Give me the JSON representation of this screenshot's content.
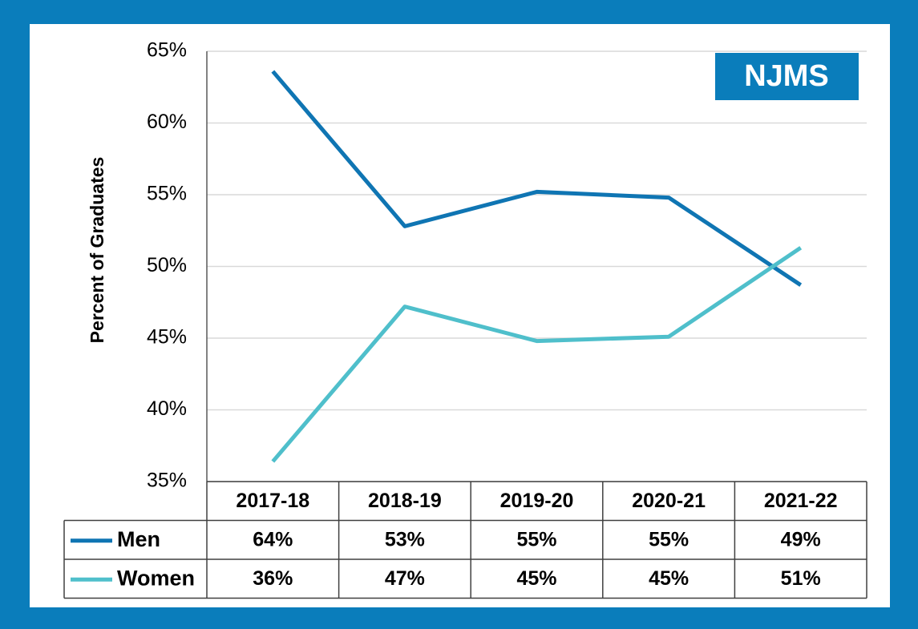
{
  "chart_data": {
    "type": "line",
    "annotation": "NJMS",
    "y_label": "Percent of Graduates",
    "categories": [
      "2017-18",
      "2018-19",
      "2019-20",
      "2020-21",
      "2021-22"
    ],
    "series": [
      {
        "name": "Men",
        "color": "#0f75b3",
        "values": [
          63.6,
          52.8,
          55.2,
          54.8,
          48.7
        ],
        "value_labels": [
          "64%",
          "53%",
          "55%",
          "55%",
          "49%"
        ]
      },
      {
        "name": "Women",
        "color": "#4fbfcb",
        "values": [
          36.4,
          47.2,
          44.8,
          45.1,
          51.3
        ],
        "value_labels": [
          "36%",
          "47%",
          "45%",
          "45%",
          "51%"
        ]
      }
    ],
    "ylim": [
      35,
      65
    ],
    "yticks": [
      {
        "value": 35,
        "label": "35%"
      },
      {
        "value": 40,
        "label": "40%"
      },
      {
        "value": 45,
        "label": "45%"
      },
      {
        "value": 50,
        "label": "50%"
      },
      {
        "value": 55,
        "label": "55%"
      },
      {
        "value": 60,
        "label": "60%"
      },
      {
        "value": 65,
        "label": "65%"
      }
    ],
    "grid": true
  }
}
